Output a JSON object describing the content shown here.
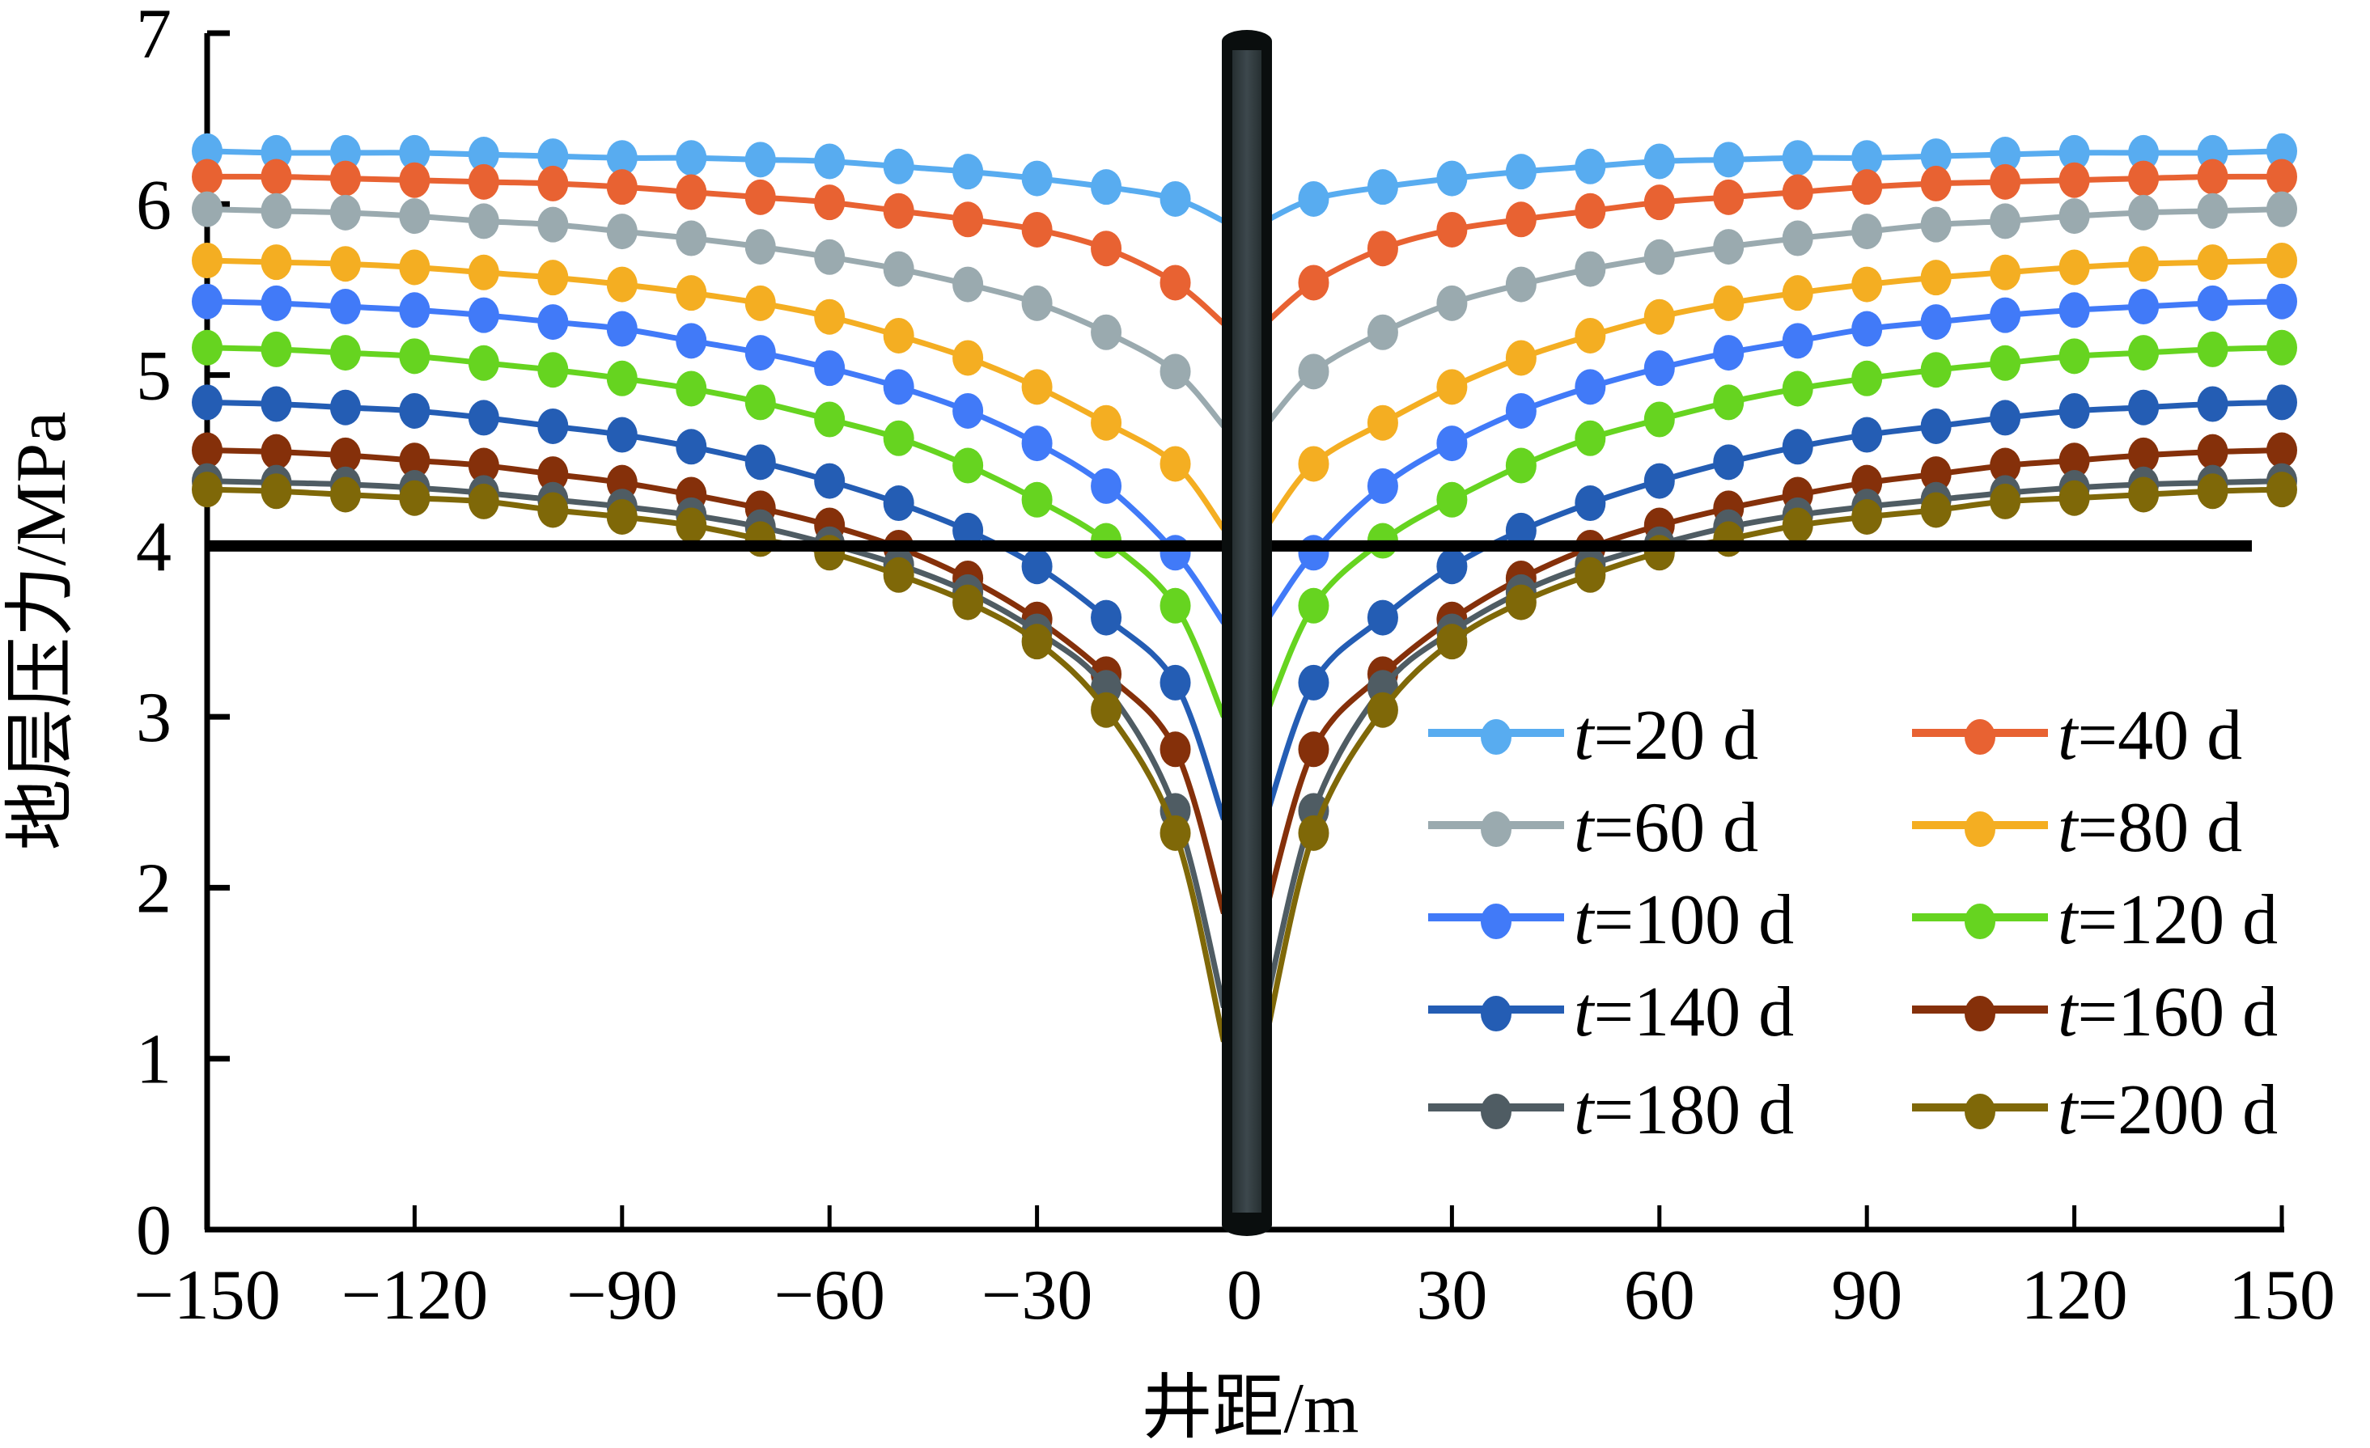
{
  "chart_data": {
    "type": "line",
    "title": "",
    "xlabel": "井距/m",
    "ylabel": "地层压力/MPa",
    "xlim": [
      -150,
      150
    ],
    "ylim": [
      0,
      7
    ],
    "x_ticks": [
      -150,
      -120,
      -90,
      -60,
      -30,
      0,
      30,
      60,
      90,
      120,
      150
    ],
    "x_tick_labels": [
      "−150",
      "−120",
      "−90",
      "−60",
      "−30",
      "0",
      "30",
      "60",
      "90",
      "120",
      "150"
    ],
    "y_ticks": [
      0,
      1,
      2,
      3,
      4,
      5,
      6,
      7
    ],
    "y_tick_labels": [
      "0",
      "1",
      "2",
      "3",
      "4",
      "5",
      "6",
      "7"
    ],
    "grid": false,
    "legend_position": "bottom-right",
    "reference_line_y": 4,
    "well_position_x": 0,
    "x": [
      -150,
      -140,
      -130,
      -120,
      -110,
      -100,
      -90,
      -80,
      -70,
      -60,
      -50,
      -40,
      -30,
      -20,
      -10,
      10,
      20,
      30,
      40,
      50,
      60,
      70,
      80,
      90,
      100,
      110,
      120,
      130,
      140,
      150
    ],
    "well_edge_x": [
      -3,
      3
    ],
    "series": [
      {
        "name": "t=20 d",
        "t_label": "t",
        "suffix": "=20 d",
        "color": "#58acf0",
        "values": [
          6.31,
          6.3,
          6.3,
          6.3,
          6.29,
          6.28,
          6.27,
          6.27,
          6.26,
          6.25,
          6.22,
          6.19,
          6.15,
          6.1,
          6.03,
          6.03,
          6.1,
          6.15,
          6.19,
          6.22,
          6.25,
          6.26,
          6.27,
          6.27,
          6.28,
          6.29,
          6.3,
          6.3,
          6.3,
          6.31
        ],
        "well_edge_value": 5.9
      },
      {
        "name": "t=40 d",
        "t_label": "t",
        "suffix": "=40 d",
        "color": "#e86232",
        "values": [
          6.16,
          6.16,
          6.15,
          6.14,
          6.13,
          6.12,
          6.1,
          6.07,
          6.04,
          6.01,
          5.96,
          5.91,
          5.85,
          5.74,
          5.54,
          5.54,
          5.74,
          5.85,
          5.91,
          5.96,
          6.01,
          6.04,
          6.07,
          6.1,
          6.12,
          6.13,
          6.14,
          6.15,
          6.16,
          6.16
        ],
        "well_edge_value": 5.3
      },
      {
        "name": "t=60 d",
        "t_label": "t",
        "suffix": "=60 d",
        "color": "#9aaaaf",
        "values": [
          5.97,
          5.96,
          5.95,
          5.93,
          5.9,
          5.88,
          5.84,
          5.8,
          5.75,
          5.69,
          5.62,
          5.53,
          5.42,
          5.25,
          5.02,
          5.02,
          5.25,
          5.42,
          5.53,
          5.62,
          5.69,
          5.75,
          5.8,
          5.84,
          5.88,
          5.9,
          5.93,
          5.95,
          5.96,
          5.97
        ],
        "well_edge_value": 4.7
      },
      {
        "name": "t=80 d",
        "t_label": "t",
        "suffix": "=80 d",
        "color": "#f4ae22",
        "values": [
          5.67,
          5.66,
          5.65,
          5.63,
          5.6,
          5.57,
          5.53,
          5.48,
          5.42,
          5.34,
          5.23,
          5.1,
          4.93,
          4.72,
          4.48,
          4.48,
          4.72,
          4.93,
          5.1,
          5.23,
          5.34,
          5.42,
          5.48,
          5.53,
          5.57,
          5.6,
          5.63,
          5.65,
          5.66,
          5.67
        ],
        "well_edge_value": 4.1
      },
      {
        "name": "t=100 d",
        "t_label": "t",
        "suffix": "=100 d",
        "color": "#417af8",
        "values": [
          5.43,
          5.42,
          5.4,
          5.38,
          5.35,
          5.31,
          5.27,
          5.2,
          5.13,
          5.04,
          4.93,
          4.79,
          4.6,
          4.35,
          3.96,
          3.96,
          4.35,
          4.6,
          4.79,
          4.93,
          5.04,
          5.13,
          5.2,
          5.27,
          5.31,
          5.35,
          5.38,
          5.4,
          5.42,
          5.43
        ],
        "well_edge_value": 3.55
      },
      {
        "name": "t=120 d",
        "t_label": "t",
        "suffix": "=120 d",
        "color": "#66d420",
        "values": [
          5.16,
          5.15,
          5.13,
          5.11,
          5.07,
          5.03,
          4.98,
          4.92,
          4.84,
          4.74,
          4.63,
          4.47,
          4.27,
          4.03,
          3.65,
          3.65,
          4.03,
          4.27,
          4.47,
          4.63,
          4.74,
          4.84,
          4.92,
          4.98,
          5.03,
          5.07,
          5.11,
          5.13,
          5.15,
          5.16
        ],
        "well_edge_value": 3.0
      },
      {
        "name": "t=140 d",
        "t_label": "t",
        "suffix": "=140 d",
        "color": "#245db4",
        "values": [
          4.84,
          4.83,
          4.81,
          4.79,
          4.75,
          4.7,
          4.65,
          4.58,
          4.49,
          4.38,
          4.25,
          4.09,
          3.88,
          3.58,
          3.2,
          3.2,
          3.58,
          3.88,
          4.09,
          4.25,
          4.38,
          4.49,
          4.58,
          4.65,
          4.7,
          4.75,
          4.79,
          4.81,
          4.83,
          4.84
        ],
        "well_edge_value": 2.4
      },
      {
        "name": "t=160 d",
        "t_label": "t",
        "suffix": "=160 d",
        "color": "#85300a",
        "values": [
          4.56,
          4.55,
          4.53,
          4.5,
          4.47,
          4.42,
          4.37,
          4.3,
          4.22,
          4.12,
          3.99,
          3.81,
          3.57,
          3.25,
          2.81,
          2.81,
          3.25,
          3.57,
          3.81,
          3.99,
          4.12,
          4.22,
          4.3,
          4.37,
          4.42,
          4.47,
          4.5,
          4.53,
          4.55,
          4.56
        ],
        "well_edge_value": 1.85
      },
      {
        "name": "t=180 d",
        "t_label": "t",
        "suffix": "=180 d",
        "color": "#4f5c63",
        "values": [
          4.38,
          4.37,
          4.36,
          4.34,
          4.31,
          4.27,
          4.23,
          4.18,
          4.11,
          4.01,
          3.89,
          3.73,
          3.5,
          3.17,
          2.45,
          2.45,
          3.17,
          3.5,
          3.73,
          3.89,
          4.01,
          4.11,
          4.18,
          4.23,
          4.27,
          4.31,
          4.34,
          4.36,
          4.37,
          4.38
        ],
        "well_edge_value": 1.3
      },
      {
        "name": "t=200 d",
        "t_label": "t",
        "suffix": "=200 d",
        "color": "#7f6808",
        "values": [
          4.33,
          4.32,
          4.3,
          4.28,
          4.26,
          4.21,
          4.17,
          4.12,
          4.04,
          3.96,
          3.83,
          3.67,
          3.44,
          3.04,
          2.32,
          2.32,
          3.04,
          3.44,
          3.67,
          3.83,
          3.96,
          4.04,
          4.12,
          4.17,
          4.21,
          4.26,
          4.28,
          4.3,
          4.32,
          4.33
        ],
        "well_edge_value": 1.1
      }
    ]
  },
  "colors": {
    "axis": "#000000",
    "reference_line": "#000000",
    "well_outer": "#0a0e0e",
    "well_inner": "#3a454a"
  }
}
